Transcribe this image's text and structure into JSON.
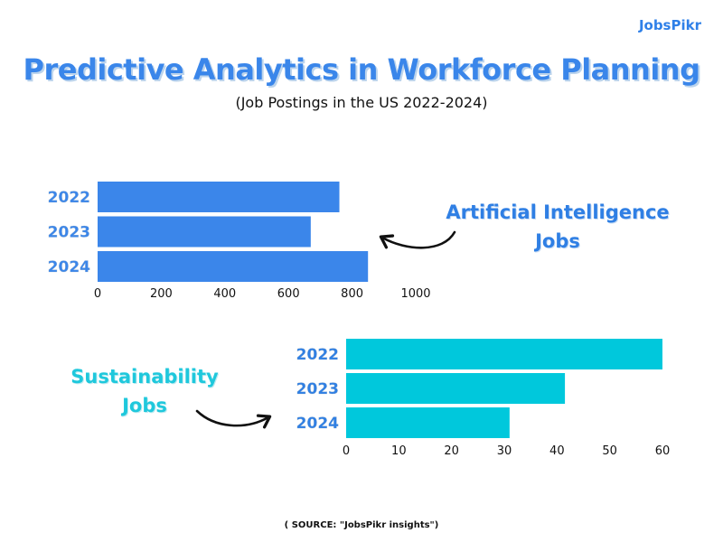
{
  "logo": "JobsPikr",
  "title": "Predictive Analytics in Workforce Planning",
  "subtitle": "(Job Postings in the US 2022-2024)",
  "callouts": {
    "ai": [
      "Artificial Intelligence",
      "Jobs"
    ],
    "sustainability": [
      "Sustainability",
      "Jobs"
    ]
  },
  "source": "( SOURCE: \"JobsPikr insights\")",
  "colors": {
    "ai_bar": "#3b86ea",
    "sustainability_bar": "#00c8dc",
    "ai_text": "#2f7fe4",
    "sustainability_text": "#1fc8dc"
  },
  "chart_data": [
    {
      "type": "bar",
      "orientation": "horizontal",
      "name": "Artificial Intelligence Jobs",
      "categories": [
        "2022",
        "2023",
        "2024"
      ],
      "values": [
        760,
        670,
        850
      ],
      "xlim": [
        0,
        1000
      ],
      "xticks": [
        0,
        200,
        400,
        600,
        800,
        1000
      ],
      "grid": false
    },
    {
      "type": "bar",
      "orientation": "horizontal",
      "name": "Sustainability Jobs",
      "categories": [
        "2022",
        "2023",
        "2024"
      ],
      "values": [
        60,
        41.5,
        31
      ],
      "xlim": [
        0,
        60
      ],
      "xticks": [
        0,
        10,
        20,
        30,
        40,
        50,
        60
      ],
      "grid": false
    }
  ]
}
